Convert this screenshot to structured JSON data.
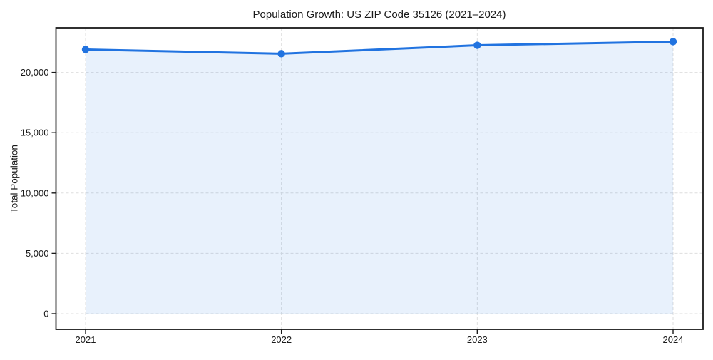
{
  "chart_data": {
    "type": "area",
    "title": "Population Growth: US ZIP Code 35126 (2021–2024)",
    "xlabel": "",
    "ylabel": "Total Population",
    "x": [
      2021,
      2022,
      2023,
      2024
    ],
    "xtick_labels": [
      "2021",
      "2022",
      "2023",
      "2024"
    ],
    "series": [
      {
        "name": "Total Population",
        "values": [
          21900,
          21550,
          22250,
          22550
        ]
      }
    ],
    "ylim": [
      -1300,
      23700
    ],
    "yticks": [
      0,
      5000,
      10000,
      15000,
      20000
    ],
    "ytick_labels": [
      "0",
      "5,000",
      "10,000",
      "15,000",
      "20,000"
    ],
    "grid": true,
    "legend": false,
    "marker": "circle",
    "colors": {
      "line": "#2173e0",
      "fill": "rgba(33,115,224,0.10)",
      "grid": "#dedede",
      "spine": "#1a1a1a",
      "text": "#1a1a1a"
    }
  }
}
